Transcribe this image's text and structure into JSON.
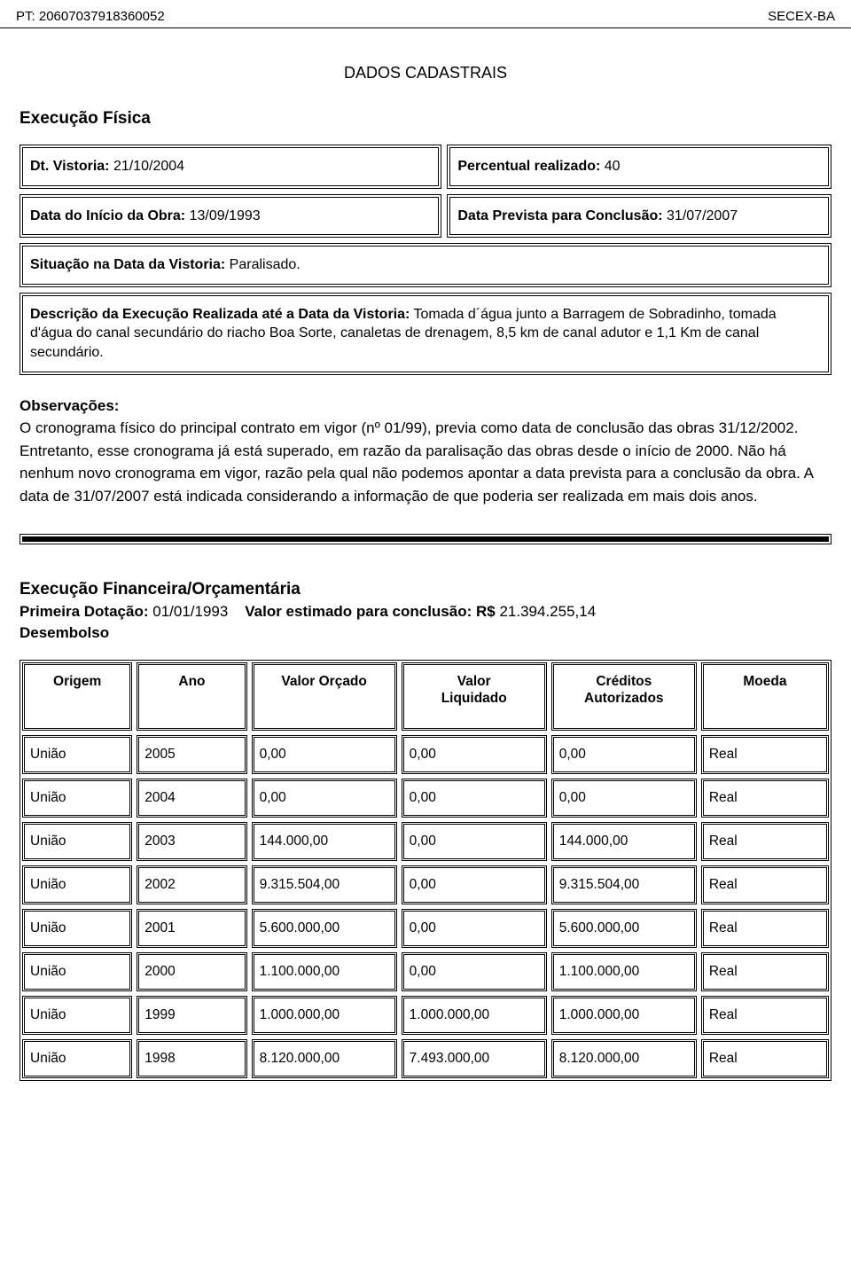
{
  "header": {
    "left_label": "PT:",
    "left_value": "20607037918360052",
    "right": "SECEX-BA"
  },
  "title": "DADOS CADASTRAIS",
  "exec_fisica": {
    "heading": "Execução Física",
    "dt_vistoria_label": "Dt. Vistoria:",
    "dt_vistoria_value": "21/10/2004",
    "percentual_label": "Percentual realizado:",
    "percentual_value": "40",
    "data_inicio_label": "Data do Início da Obra:",
    "data_inicio_value": "13/09/1993",
    "data_prevista_label": "Data Prevista para Conclusão:",
    "data_prevista_value": "31/07/2007",
    "situacao_label": "Situação na Data da Vistoria:",
    "situacao_value": "Paralisado.",
    "descricao_label": "Descrição da Execução Realizada até a Data da Vistoria:",
    "descricao_value": "Tomada d´água junto a Barragem de Sobradinho, tomada d'água do canal secundário do riacho Boa Sorte, canaletas de drenagem, 8,5 km de canal adutor e 1,1 Km de canal secundário."
  },
  "observacoes": {
    "heading": "Observações:",
    "body": "O cronograma físico do principal contrato em vigor (nº 01/99), previa como data de conclusão das obras 31/12/2002. Entretanto, esse cronograma já está superado, em razão da paralisação das obras desde o início de 2000. Não há nenhum novo cronograma em vigor, razão pela qual não podemos apontar a data prevista para a conclusão da obra. A data de 31/07/2007 está indicada considerando a informação de que poderia ser realizada em mais dois anos."
  },
  "exec_fin": {
    "heading": "Execução Financeira/Orçamentária",
    "primeira_dotacao_label": "Primeira Dotação:",
    "primeira_dotacao_value": "01/01/1993",
    "valor_estimado_label": "Valor estimado para conclusão: R$",
    "valor_estimado_value": "21.394.255,14",
    "desembolso_label": "Desembolso"
  },
  "table": {
    "columns": [
      "Origem",
      "Ano",
      "Valor Orçado",
      "Valor Liquidado",
      "Créditos Autorizados",
      "Moeda"
    ],
    "col_multiline": {
      "3": [
        "Valor",
        "Liquidado"
      ],
      "4": [
        "Créditos",
        "Autorizados"
      ]
    },
    "rows": [
      [
        "União",
        "2005",
        "0,00",
        "0,00",
        "0,00",
        "Real"
      ],
      [
        "União",
        "2004",
        "0,00",
        "0,00",
        "0,00",
        "Real"
      ],
      [
        "União",
        "2003",
        "144.000,00",
        "0,00",
        "144.000,00",
        "Real"
      ],
      [
        "União",
        "2002",
        "9.315.504,00",
        "0,00",
        "9.315.504,00",
        "Real"
      ],
      [
        "União",
        "2001",
        "5.600.000,00",
        "0,00",
        "5.600.000,00",
        "Real"
      ],
      [
        "União",
        "2000",
        "1.100.000,00",
        "0,00",
        "1.100.000,00",
        "Real"
      ],
      [
        "União",
        "1999",
        "1.000.000,00",
        "1.000.000,00",
        "1.000.000,00",
        "Real"
      ],
      [
        "União",
        "1998",
        "8.120.000,00",
        "7.493.000,00",
        "8.120.000,00",
        "Real"
      ]
    ]
  }
}
